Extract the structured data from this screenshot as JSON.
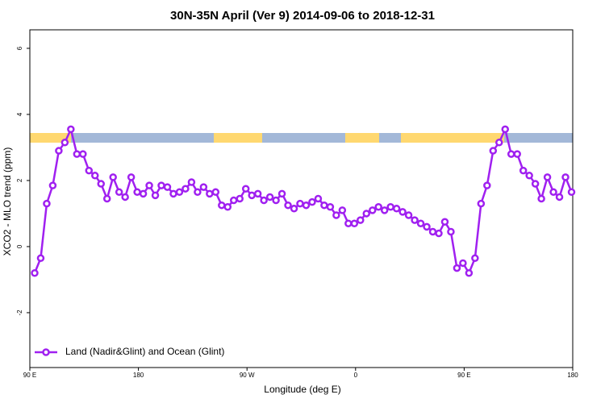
{
  "chart_data": {
    "type": "line",
    "title": "30N-35N April (Ver 9)   2014-09-06 to 2018-12-31",
    "xlabel": "Longitude (deg E)",
    "ylabel": "XCO2 - MLO trend (ppm)",
    "xlim": [
      90,
      540
    ],
    "xticks": [
      {
        "value": 90,
        "label": "90 E"
      },
      180,
      {
        "value": 270,
        "label": "90 W"
      },
      {
        "value": 360,
        "label": "0"
      },
      {
        "value": 450,
        "label": "90 E"
      },
      {
        "value": 540,
        "label": "180"
      }
    ],
    "ylim": [
      -3.66,
      6.56
    ],
    "yticks": [
      -2,
      0,
      2,
      4,
      6
    ],
    "legend": "bottom-left",
    "x": [
      94,
      99,
      104,
      109,
      114,
      119,
      124,
      129,
      134,
      139,
      144,
      149,
      154,
      159,
      164,
      169,
      174,
      179,
      184,
      189,
      194,
      199,
      204,
      209,
      214,
      219,
      224,
      229,
      234,
      239,
      244,
      249,
      254,
      259,
      264,
      269,
      274,
      279,
      284,
      289,
      294,
      299,
      304,
      309,
      314,
      319,
      324,
      329,
      334,
      339,
      344,
      349,
      354,
      359,
      364,
      369,
      374,
      379,
      384,
      389,
      394,
      399,
      404,
      409,
      414,
      419,
      424,
      429,
      434,
      439,
      444,
      449,
      454,
      459,
      464,
      469,
      474,
      479,
      484,
      489,
      494,
      499,
      504,
      509,
      514,
      519,
      524,
      529,
      534,
      539
    ],
    "series": [
      {
        "name": "Land (Nadir&Glint) and Ocean (Glint)",
        "color": "#a020f0",
        "values": [
          -0.8,
          -0.35,
          1.3,
          1.85,
          2.9,
          3.15,
          3.55,
          2.8,
          2.8,
          2.3,
          2.15,
          1.9,
          1.45,
          2.1,
          1.65,
          1.5,
          2.1,
          1.65,
          1.6,
          1.85,
          1.55,
          1.85,
          1.8,
          1.6,
          1.65,
          1.75,
          1.95,
          1.65,
          1.8,
          1.6,
          1.65,
          1.25,
          1.2,
          1.4,
          1.45,
          1.75,
          1.55,
          1.6,
          1.4,
          1.5,
          1.4,
          1.6,
          1.25,
          1.15,
          1.3,
          1.25,
          1.35,
          1.45,
          1.25,
          1.2,
          0.95,
          1.1,
          0.7,
          0.7,
          0.8,
          1.0,
          1.1,
          1.2,
          1.1,
          1.2,
          1.15,
          1.05,
          0.95,
          0.8,
          0.7,
          0.6,
          0.45,
          0.4,
          0.75,
          0.45,
          -0.65,
          -0.5,
          -0.8,
          -0.35,
          1.3,
          1.85,
          2.9,
          3.15,
          3.55,
          2.8,
          2.8,
          2.3,
          2.15,
          1.9,
          1.45,
          2.1,
          1.65,
          1.5,
          2.1,
          1.65
        ]
      }
    ]
  }
}
